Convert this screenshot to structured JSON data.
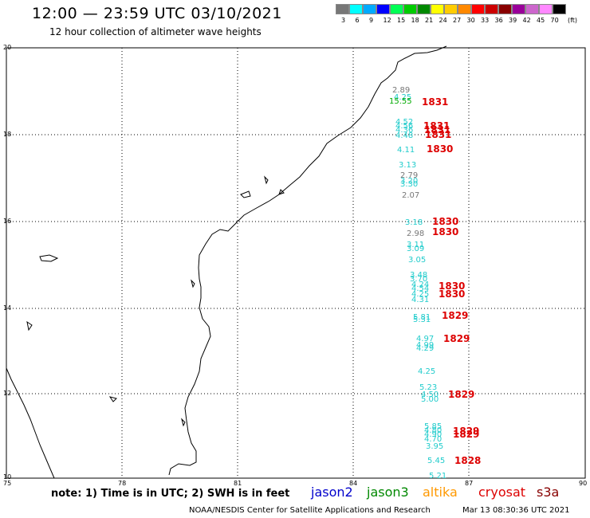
{
  "header": {
    "title": "12:00 — 23:59 UTC 03/10/2021",
    "subtitle": "12 hour collection of altimeter wave heights"
  },
  "color_scale": {
    "swatches": [
      "#777777",
      "#00ffff",
      "#00aaff",
      "#0000ff",
      "#00ff55",
      "#00cc00",
      "#008800",
      "#ffff00",
      "#ffcc00",
      "#ff8800",
      "#ff0000",
      "#cc0000",
      "#880000",
      "#990099",
      "#cc66cc",
      "#ff88ff",
      "#000000"
    ],
    "labels": [
      "3",
      "6",
      "9",
      "12",
      "15",
      "18",
      "21",
      "24",
      "27",
      "30",
      "33",
      "36",
      "39",
      "42",
      "45",
      "70",
      "(ft)"
    ]
  },
  "axes": {
    "lat_labels": [
      "20",
      "18",
      "16",
      "14",
      "12",
      "10"
    ],
    "lon_labels": [
      "75",
      "78",
      "81",
      "84",
      "87",
      "90"
    ]
  },
  "measurements": [
    {
      "swh": "2.89",
      "color": "#777777"
    },
    {
      "swh": "4.25",
      "color": "#22cccc"
    },
    {
      "swh": "15.55",
      "color": "#00aa00"
    },
    {
      "swh": "4.52",
      "color": "#22cccc"
    },
    {
      "swh": "4.56",
      "color": "#22cccc"
    },
    {
      "swh": "4.36",
      "color": "#22cccc"
    },
    {
      "swh": "4.48",
      "color": "#22cccc"
    },
    {
      "swh": "4.11",
      "color": "#22cccc"
    },
    {
      "swh": "3.13",
      "color": "#22cccc"
    },
    {
      "swh": "2.79",
      "color": "#777777"
    },
    {
      "swh": "3.20",
      "color": "#22cccc"
    },
    {
      "swh": "3.30",
      "color": "#22cccc"
    },
    {
      "swh": "2.07",
      "color": "#777777"
    },
    {
      "swh": "3.18",
      "color": "#22cccc"
    },
    {
      "swh": "2.98",
      "color": "#777777"
    },
    {
      "swh": "3.11",
      "color": "#22cccc"
    },
    {
      "swh": "3.09",
      "color": "#22cccc"
    },
    {
      "swh": "3.05",
      "color": "#22cccc"
    },
    {
      "swh": "3.48",
      "color": "#22cccc"
    },
    {
      "swh": "3.70",
      "color": "#22cccc"
    },
    {
      "swh": "4.24",
      "color": "#22cccc"
    },
    {
      "swh": "4.54",
      "color": "#22cccc"
    },
    {
      "swh": "4.25",
      "color": "#22cccc"
    },
    {
      "swh": "4.31",
      "color": "#22cccc"
    },
    {
      "swh": "5.81",
      "color": "#22cccc"
    },
    {
      "swh": "5.31",
      "color": "#22cccc"
    },
    {
      "swh": "4.97",
      "color": "#22cccc"
    },
    {
      "swh": "4.99",
      "color": "#22cccc"
    },
    {
      "swh": "4.29",
      "color": "#22cccc"
    },
    {
      "swh": "4.25",
      "color": "#22cccc"
    },
    {
      "swh": "5.23",
      "color": "#22cccc"
    },
    {
      "swh": "4.50",
      "color": "#22cccc"
    },
    {
      "swh": "5.00",
      "color": "#22cccc"
    },
    {
      "swh": "5.85",
      "color": "#22cccc"
    },
    {
      "swh": "4.80",
      "color": "#22cccc"
    },
    {
      "swh": "4.90",
      "color": "#22cccc"
    },
    {
      "swh": "4.70",
      "color": "#22cccc"
    },
    {
      "swh": "3.95",
      "color": "#22cccc"
    },
    {
      "swh": "5.45",
      "color": "#22cccc"
    },
    {
      "swh": "5.21",
      "color": "#22cccc"
    }
  ],
  "time_labels": [
    "1831",
    "1831",
    "1831",
    "1831",
    "1830",
    "1830",
    "1830",
    "1830",
    "1830",
    "1829",
    "1829",
    "1829",
    "1829",
    "1829",
    "1828"
  ],
  "footer": {
    "note": "note: 1) Time is in UTC; 2) SWH is in feet",
    "legend": [
      {
        "name": "jason2",
        "color": "#0000cc"
      },
      {
        "name": "jason3",
        "color": "#008800"
      },
      {
        "name": "altika",
        "color": "#ff9900"
      },
      {
        "name": "cryosat",
        "color": "#dd0000"
      },
      {
        "name": "s3a",
        "color": "#880000"
      }
    ],
    "credit": "NOAA/NESDIS Center for Satellite Applications and Research",
    "date": "Mar 13 08:30:36 UTC 2021"
  }
}
